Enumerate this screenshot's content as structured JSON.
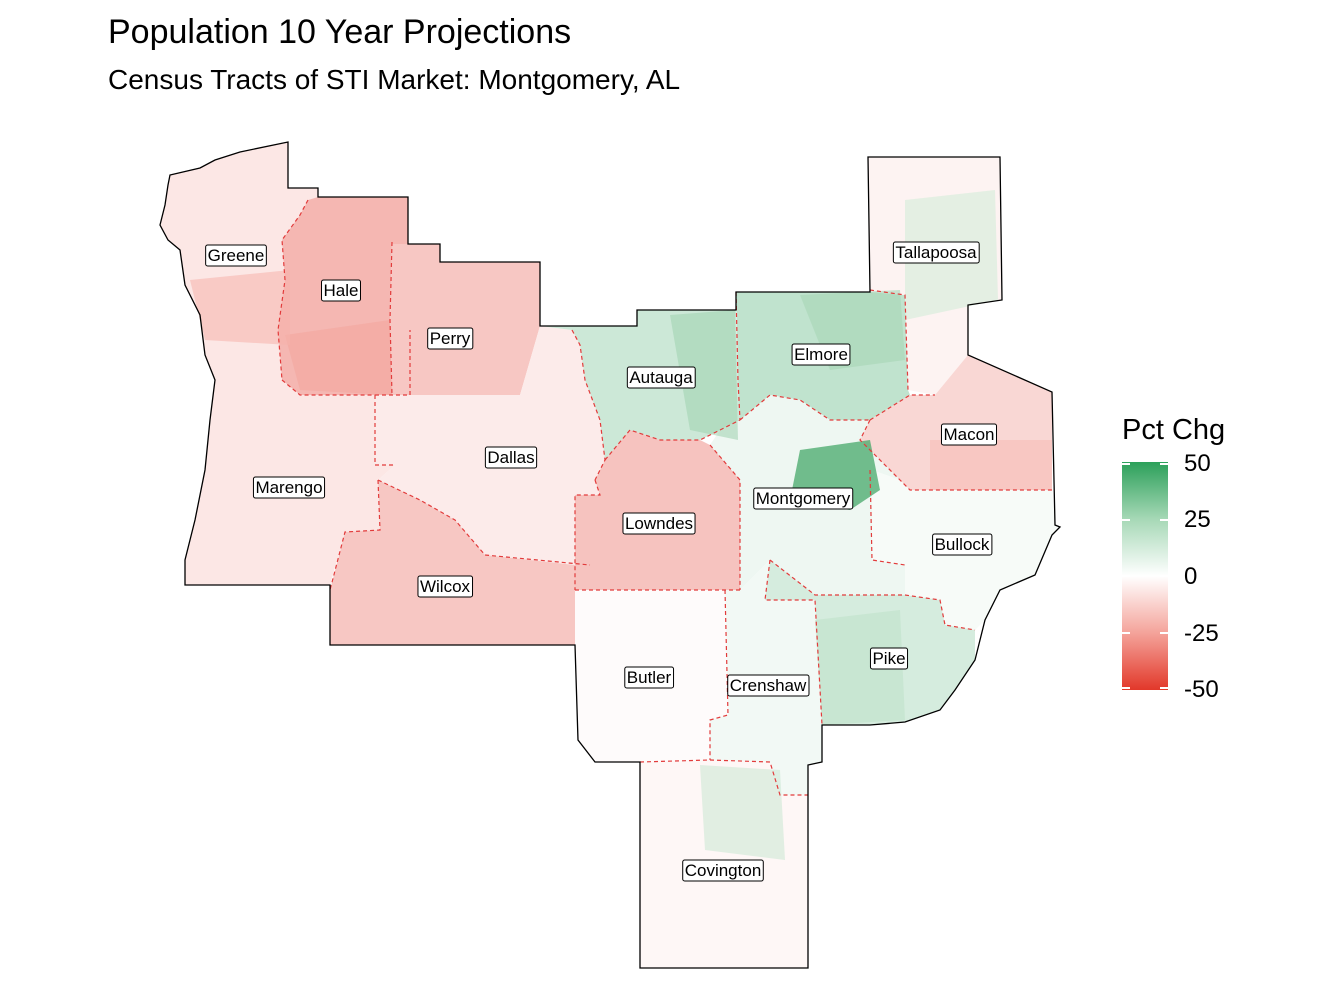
{
  "title": "Population 10 Year Projections",
  "subtitle": "Census Tracts of STI Market: Montgomery, AL",
  "legend": {
    "title": "Pct Chg",
    "ticks": [
      "50",
      "25",
      "0",
      "-25",
      "-50"
    ],
    "colors": {
      "high": "#2ca05a",
      "mid": "#ffffff",
      "low": "#e2382a"
    },
    "range": [
      -50,
      50
    ]
  },
  "counties": [
    {
      "name": "Greene",
      "pct_chg": -6
    },
    {
      "name": "Hale",
      "pct_chg": -18
    },
    {
      "name": "Perry",
      "pct_chg": -14
    },
    {
      "name": "Marengo",
      "pct_chg": -6
    },
    {
      "name": "Dallas",
      "pct_chg": -5
    },
    {
      "name": "Wilcox",
      "pct_chg": -14
    },
    {
      "name": "Autauga",
      "pct_chg": 12
    },
    {
      "name": "Elmore",
      "pct_chg": 15
    },
    {
      "name": "Tallapoosa",
      "pct_chg": -3
    },
    {
      "name": "Macon",
      "pct_chg": -10
    },
    {
      "name": "Montgomery",
      "pct_chg": 4
    },
    {
      "name": "Lowndes",
      "pct_chg": -15
    },
    {
      "name": "Bullock",
      "pct_chg": 2
    },
    {
      "name": "Butler",
      "pct_chg": -1
    },
    {
      "name": "Crenshaw",
      "pct_chg": 3
    },
    {
      "name": "Pike",
      "pct_chg": 10
    },
    {
      "name": "Covington",
      "pct_chg": -2
    }
  ]
}
